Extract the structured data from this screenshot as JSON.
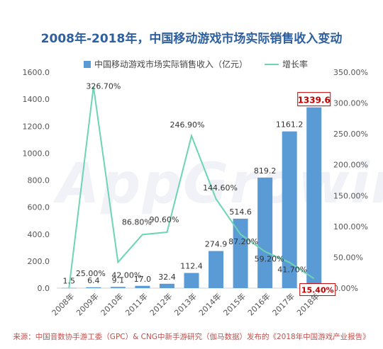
{
  "title": "2008年-2018年，中国移动游戏市场实际销售收入变动",
  "source": "来源：中国音数协手游工委（GPC）& CNG中新手游研究（伽马数据）发布的《2018年中国游戏产业报告》",
  "watermark": "AppGrowing",
  "colors": {
    "bar": "#5b9bd5",
    "line": "#6dd4b5",
    "title": "#2e5f9e",
    "highlight": "#c00000"
  },
  "chart_data": {
    "type": "bar",
    "categories": [
      "2008年",
      "2009年",
      "2010年",
      "2011年",
      "2012年",
      "2013年",
      "2014年",
      "2015年",
      "2016年",
      "2017年",
      "2018年"
    ],
    "series": [
      {
        "name": "中国移动游戏市场实际销售收入（亿元）",
        "type": "bar",
        "axis": "left",
        "values": [
          1.5,
          6.4,
          9.1,
          17.0,
          32.4,
          112.4,
          274.9,
          514.6,
          819.2,
          1161.2,
          1339.6
        ],
        "labels": [
          "1.5",
          "6.4",
          "9.1",
          "17.0",
          "32.4",
          "112.4",
          "274.9",
          "514.6",
          "819.2",
          "1161.2",
          "1339.6"
        ]
      },
      {
        "name": "增长率",
        "type": "line",
        "axis": "right",
        "values": [
          null,
          326.7,
          42.0,
          86.8,
          90.6,
          246.9,
          144.6,
          87.2,
          59.2,
          41.7,
          15.4
        ],
        "labels": [
          "",
          "326.70%",
          "42.00%",
          "86.80%",
          "90.60%",
          "246.90%",
          "144.60%",
          "87.20%",
          "59.20%",
          "41.70%",
          "15.40%"
        ]
      }
    ],
    "extra_label": "25.00%",
    "ylim_left": [
      0,
      1600
    ],
    "ylim_right": [
      0,
      350
    ],
    "yticks_left": [
      "0.0",
      "200.0",
      "400.0",
      "600.0",
      "800.0",
      "1000.0",
      "1200.0",
      "1400.0",
      "1600.0"
    ],
    "yticks_right": [
      "0.00%",
      "50.00%",
      "100.00%",
      "150.00%",
      "200.00%",
      "250.00%",
      "300.00%",
      "350.00%"
    ],
    "highlighted": [
      "1339.6",
      "15.40%"
    ],
    "grid": false,
    "legend_position": "top"
  }
}
